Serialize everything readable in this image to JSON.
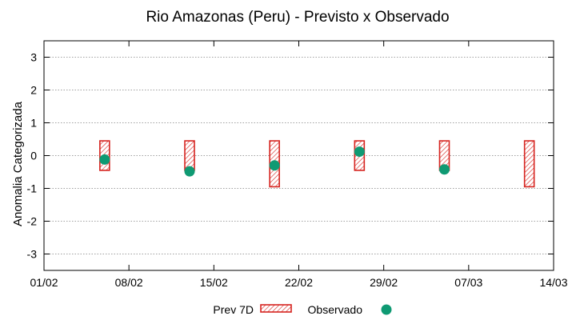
{
  "chart_data": {
    "type": "scatter",
    "title": "Rio Amazonas (Peru) - Previsto x Observado",
    "xlabel": "",
    "ylabel": "Anomalia Categorizada",
    "xlim": [
      0,
      42
    ],
    "ylim": [
      -3.5,
      3.5
    ],
    "x_ticks": [
      {
        "day": 0,
        "label": "01/02"
      },
      {
        "day": 7,
        "label": "08/02"
      },
      {
        "day": 14,
        "label": "15/02"
      },
      {
        "day": 21,
        "label": "22/02"
      },
      {
        "day": 28,
        "label": "29/02"
      },
      {
        "day": 35,
        "label": "07/03"
      },
      {
        "day": 42,
        "label": "14/03"
      }
    ],
    "y_ticks": [
      {
        "value": 3,
        "label": "3"
      },
      {
        "value": 2,
        "label": "2"
      },
      {
        "value": 1,
        "label": "1"
      },
      {
        "value": 0,
        "label": "0"
      },
      {
        "value": -1,
        "label": "-1"
      },
      {
        "value": -2,
        "label": "-2"
      },
      {
        "value": -3,
        "label": "-3"
      }
    ],
    "series": [
      {
        "name": "Prev 7D",
        "kind": "range-box",
        "color": "#d6231f",
        "points": [
          {
            "x": 5,
            "low": -0.45,
            "high": 0.45
          },
          {
            "x": 12,
            "low": -0.45,
            "high": 0.45
          },
          {
            "x": 19,
            "low": -0.95,
            "high": 0.45
          },
          {
            "x": 26,
            "low": -0.45,
            "high": 0.45
          },
          {
            "x": 33,
            "low": -0.45,
            "high": 0.45
          },
          {
            "x": 40,
            "low": -0.95,
            "high": 0.45
          }
        ]
      },
      {
        "name": "Observado",
        "kind": "point",
        "color": "#0f9a73",
        "points": [
          {
            "x": 5,
            "y": -0.12
          },
          {
            "x": 12,
            "y": -0.48
          },
          {
            "x": 19,
            "y": -0.3
          },
          {
            "x": 26,
            "y": 0.12
          },
          {
            "x": 33,
            "y": -0.42
          }
        ]
      }
    ],
    "grid": true,
    "legend_position": "bottom-center"
  }
}
